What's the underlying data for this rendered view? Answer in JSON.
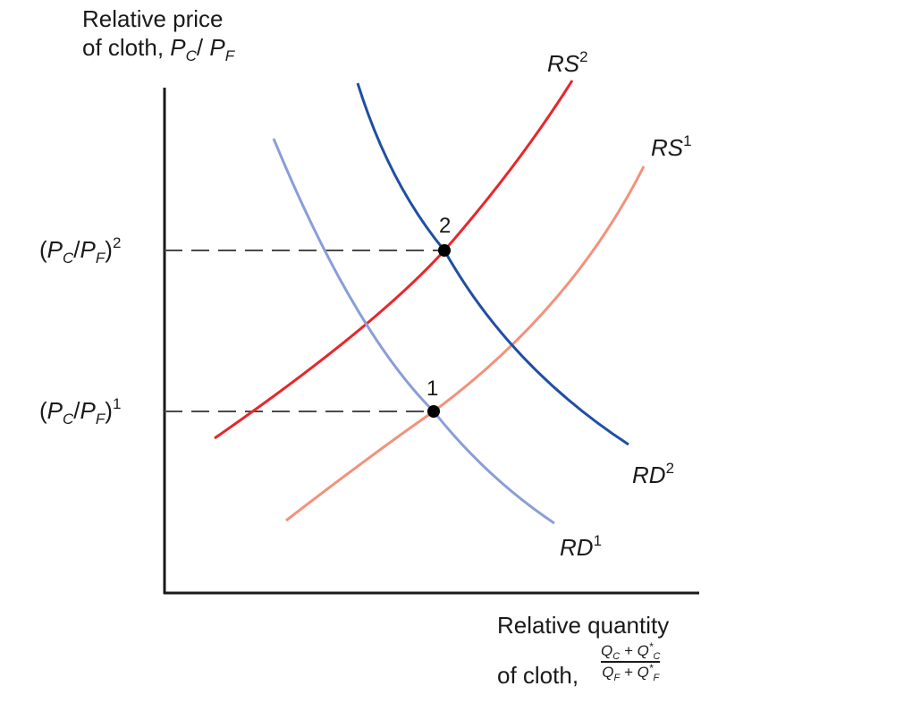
{
  "y_axis_label": {
    "line1": "Relative price",
    "line2_prefix": "of cloth, ",
    "P": "P",
    "C": "C",
    "slash": "/ ",
    "F": "F"
  },
  "x_axis_label": {
    "line1": "Relative quantity",
    "line2_prefix": "of cloth,",
    "frac_num": {
      "Q1": "Q",
      "s1": "C",
      "plus": " + ",
      "Q2": "Q",
      "s2": "C",
      "star": "*"
    },
    "frac_den": {
      "Q1": "Q",
      "s1": "F",
      "plus": " + ",
      "Q2": "Q",
      "s2": "F",
      "star": "*"
    }
  },
  "price_levels": [
    {
      "open": "(",
      "P1": "P",
      "s1": "C",
      "slash": "/",
      "P2": "P",
      "s2": "F",
      "close": ")",
      "exp": "2"
    },
    {
      "open": "(",
      "P1": "P",
      "s1": "C",
      "slash": "/",
      "P2": "P",
      "s2": "F",
      "close": ")",
      "exp": "1"
    }
  ],
  "curves": [
    {
      "base": "RS",
      "exp": "2",
      "color": "#e8262b"
    },
    {
      "base": "RS",
      "exp": "1",
      "color": "#f4917a"
    },
    {
      "base": "RD",
      "exp": "2",
      "color": "#1f4fa3"
    },
    {
      "base": "RD",
      "exp": "1",
      "color": "#8a9ed6"
    }
  ],
  "equilibria": [
    {
      "label": "2"
    },
    {
      "label": "1"
    }
  ],
  "colors": {
    "axis": "#1a1a1a",
    "guide": "#4a4a4a",
    "point": "#000000"
  }
}
